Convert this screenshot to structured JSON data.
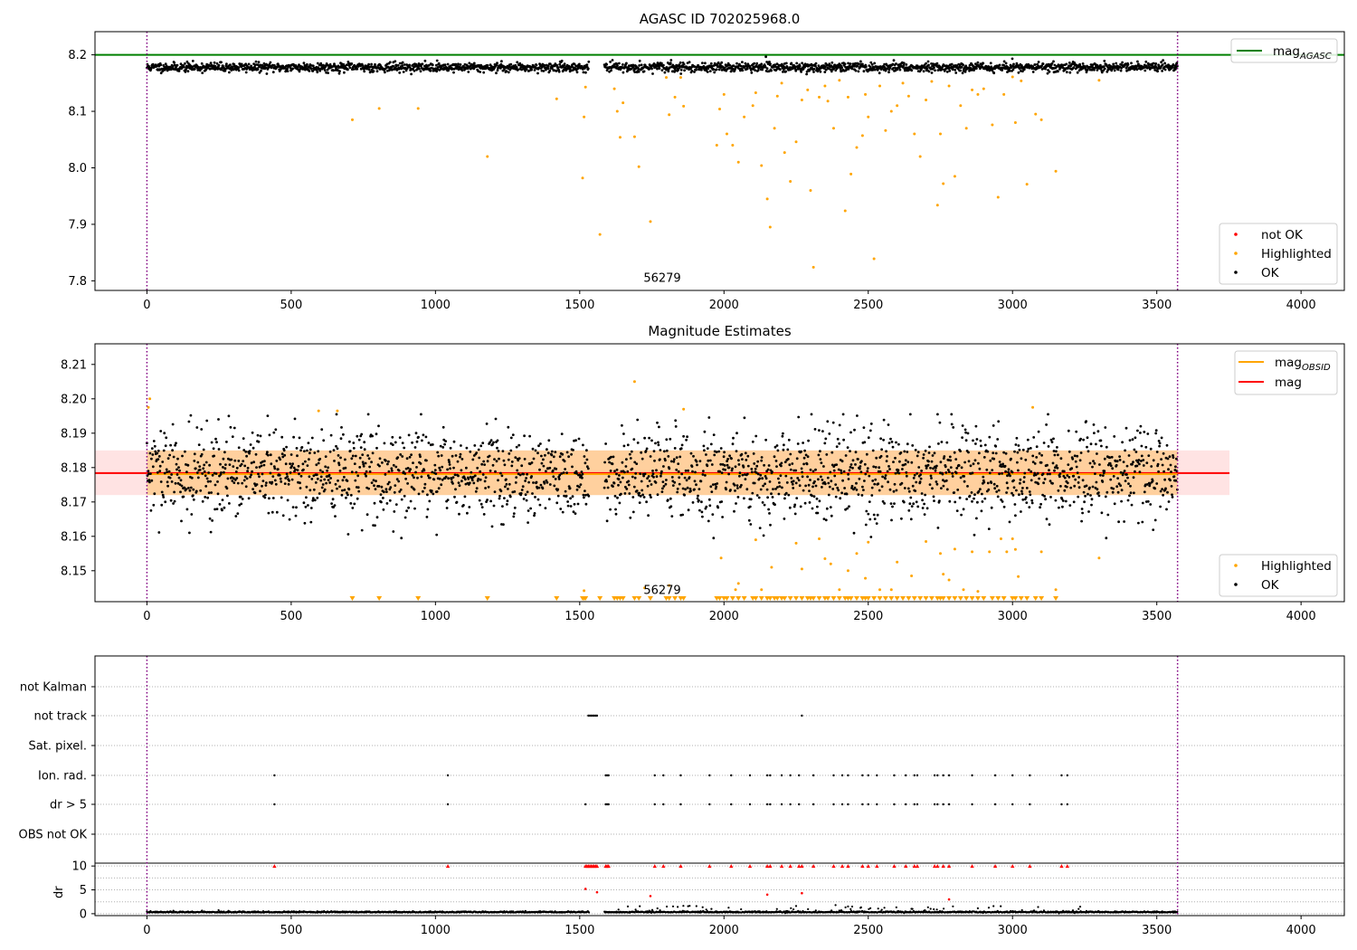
{
  "chart_data": [
    {
      "type": "scatter",
      "title": "AGASC ID 702025968.0",
      "xlim": [
        -180,
        4150
      ],
      "ylim": [
        7.783,
        8.241
      ],
      "x_ticks": [
        0,
        500,
        1000,
        1500,
        2000,
        2500,
        3000,
        3500,
        4000
      ],
      "y_ticks": [
        7.8,
        7.9,
        8.0,
        8.1,
        8.2
      ],
      "reference_lines": [
        {
          "name": "mag_AGASC",
          "y": 8.2,
          "color": "#008000"
        }
      ],
      "vlines": [
        0,
        3572
      ],
      "vline_color": "#800080",
      "annotation": {
        "text": "56279",
        "x": 1786,
        "y": 7.8
      },
      "legend_upper": [
        {
          "label": "mag",
          "sub": "AGASC",
          "color": "#008000"
        }
      ],
      "legend_lower": [
        {
          "label": "not OK",
          "color": "#ff0000"
        },
        {
          "label": "Highlighted",
          "color": "#ffa500"
        },
        {
          "label": "OK",
          "color": "#000000"
        }
      ],
      "series": [
        {
          "name": "OK",
          "color": "#000000",
          "generated": {
            "x_start": 0,
            "x_end": 3572,
            "gap": [
              1532,
              1585
            ],
            "step": 1.55,
            "center": 8.178,
            "spread": 0.009
          }
        },
        {
          "name": "Highlighted",
          "color": "#ffa500",
          "x": [
            712,
            805,
            940,
            1180,
            1420,
            1510,
            1515,
            1520,
            1570,
            1620,
            1630,
            1640,
            1650,
            1690,
            1705,
            1745,
            1800,
            1810,
            1830,
            1850,
            1860,
            1975,
            1985,
            2000,
            2010,
            2030,
            2050,
            2070,
            2100,
            2110,
            2130,
            2150,
            2160,
            2175,
            2185,
            2200,
            2210,
            2230,
            2250,
            2270,
            2290,
            2300,
            2310,
            2330,
            2350,
            2360,
            2380,
            2400,
            2420,
            2430,
            2440,
            2460,
            2480,
            2490,
            2500,
            2520,
            2540,
            2560,
            2580,
            2600,
            2620,
            2640,
            2660,
            2680,
            2700,
            2720,
            2740,
            2750,
            2760,
            2780,
            2800,
            2820,
            2840,
            2860,
            2880,
            2900,
            2930,
            2950,
            2970,
            3000,
            3010,
            3030,
            3050,
            3080,
            3100,
            3150,
            3300
          ],
          "y": [
            8.085,
            8.105,
            8.105,
            8.02,
            8.122,
            7.982,
            8.09,
            8.143,
            7.882,
            8.14,
            8.1,
            8.054,
            8.115,
            8.055,
            8.002,
            7.905,
            8.16,
            8.094,
            8.125,
            8.16,
            8.109,
            8.04,
            8.104,
            8.13,
            8.06,
            8.04,
            8.01,
            8.09,
            8.11,
            8.133,
            8.004,
            7.945,
            7.895,
            8.07,
            8.127,
            8.15,
            8.027,
            7.976,
            8.046,
            8.12,
            8.138,
            7.96,
            7.824,
            8.125,
            8.145,
            8.118,
            8.07,
            8.155,
            7.924,
            8.125,
            7.989,
            8.036,
            8.057,
            8.13,
            8.09,
            7.839,
            8.145,
            8.066,
            8.1,
            8.11,
            8.15,
            8.127,
            8.06,
            8.02,
            8.12,
            8.153,
            7.934,
            8.06,
            7.972,
            8.145,
            7.985,
            8.11,
            8.07,
            8.138,
            8.13,
            8.14,
            8.076,
            7.948,
            8.13,
            8.161,
            8.08,
            8.154,
            7.971,
            8.095,
            8.085,
            7.994,
            8.155
          ]
        },
        {
          "name": "not OK",
          "color": "#ff0000",
          "x": [],
          "y": []
        }
      ]
    },
    {
      "type": "scatter",
      "title": "Magnitude Estimates",
      "xlim": [
        -180,
        4150
      ],
      "ylim": [
        8.141,
        8.216
      ],
      "x_ticks": [
        0,
        500,
        1000,
        1500,
        2000,
        2500,
        3000,
        3500,
        4000
      ],
      "y_ticks": [
        8.15,
        8.16,
        8.17,
        8.18,
        8.19,
        8.2,
        8.21
      ],
      "bands": [
        {
          "name": "mag band",
          "y0": 8.172,
          "y1": 8.185,
          "x0": -180,
          "x1": 3752,
          "color": "#ffc0c0"
        },
        {
          "name": "mag_OBSID band",
          "y0": 8.172,
          "y1": 8.185,
          "x0": 0,
          "x1": 3572,
          "color": "#ffa500"
        }
      ],
      "reference_lines": [
        {
          "name": "mag",
          "y": 8.1784,
          "x0": -180,
          "x1": 3752,
          "color": "#ff0000"
        },
        {
          "name": "mag_OBSID",
          "y": 8.1781,
          "x0": 0,
          "x1": 3572,
          "color": "#ffa500"
        }
      ],
      "vlines": [
        0,
        3572
      ],
      "vline_color": "#800080",
      "annotation": {
        "text": "56279",
        "x": 1786,
        "y": 8.1435
      },
      "legend_upper": [
        {
          "label": "mag",
          "sub": "OBSID",
          "color": "#ffa500"
        },
        {
          "label": "mag",
          "sub": "",
          "color": "#ff0000"
        }
      ],
      "legend_lower": [
        {
          "label": "Highlighted",
          "color": "#ffa500"
        },
        {
          "label": "OK",
          "color": "#000000"
        }
      ],
      "series": [
        {
          "name": "OK",
          "color": "#000000",
          "generated": {
            "x_start": 0,
            "x_end": 3572,
            "gap": [
              1532,
              1585
            ],
            "step": 1.55,
            "center": 8.178,
            "spread": 0.0065
          }
        },
        {
          "name": "Highlighted",
          "color": "#ffa500",
          "x": [
            5,
            10,
            595,
            660,
            1690,
            1860,
            3070,
            3300,
            1515,
            1725,
            1810,
            1990,
            2040,
            2050,
            2110,
            2130,
            2165,
            2250,
            2270,
            2330,
            2350,
            2370,
            2400,
            2430,
            2460,
            2490,
            2500,
            2540,
            2580,
            2600,
            2650,
            2700,
            2750,
            2760,
            2780,
            2800,
            2830,
            2860,
            2880,
            2920,
            2960,
            2980,
            3000,
            3010,
            3020,
            3100,
            3150
          ],
          "y": [
            8.1975,
            8.2,
            8.1965,
            8.1965,
            8.205,
            8.197,
            8.1975,
            8.1537,
            8.1442,
            8.145,
            8.1457,
            8.1537,
            8.1445,
            8.1463,
            8.159,
            8.1445,
            8.151,
            8.158,
            8.1505,
            8.1593,
            8.1535,
            8.152,
            8.1445,
            8.15,
            8.155,
            8.1478,
            8.1583,
            8.1445,
            8.1445,
            8.1525,
            8.1485,
            8.1585,
            8.155,
            8.149,
            8.1473,
            8.1563,
            8.1445,
            8.1555,
            8.144,
            8.1555,
            8.1593,
            8.1555,
            8.1593,
            8.1562,
            8.1483,
            8.1555,
            8.1445
          ]
        },
        {
          "name": "Highlighted (clipped below)",
          "color": "#ffa500",
          "marker": "triangle-down",
          "x": [
            712,
            805,
            940,
            1180,
            1420,
            1510,
            1515,
            1520,
            1570,
            1620,
            1630,
            1640,
            1650,
            1690,
            1705,
            1745,
            1800,
            1810,
            1830,
            1850,
            1860,
            1975,
            1985,
            2000,
            2010,
            2030,
            2050,
            2070,
            2100,
            2110,
            2130,
            2150,
            2160,
            2175,
            2185,
            2200,
            2210,
            2230,
            2250,
            2270,
            2290,
            2300,
            2310,
            2330,
            2350,
            2360,
            2380,
            2400,
            2420,
            2430,
            2440,
            2460,
            2480,
            2490,
            2500,
            2520,
            2540,
            2560,
            2580,
            2600,
            2620,
            2640,
            2660,
            2680,
            2700,
            2720,
            2740,
            2750,
            2760,
            2780,
            2800,
            2820,
            2840,
            2860,
            2880,
            2900,
            2930,
            2950,
            2970,
            3000,
            3010,
            3030,
            3050,
            3080,
            3100,
            3150
          ]
        }
      ]
    },
    {
      "type": "scatter",
      "title": "",
      "xlim": [
        -180,
        4150
      ],
      "x_ticks": [
        0,
        500,
        1000,
        1500,
        2000,
        2500,
        3000,
        3500,
        4000
      ],
      "vlines": [
        0,
        3572
      ],
      "vline_color": "#800080",
      "flag_rows": [
        "not Kalman",
        "not track",
        "Sat. pixel.",
        "Ion. rad.",
        "dr > 5",
        "OBS not OK"
      ],
      "flags": {
        "not track": {
          "x": [
            1530,
            1535,
            1540,
            1545,
            1550,
            1555,
            1560,
            2270
          ]
        },
        "Ion. rad.": {
          "x": [
            442,
            1043,
            1590,
            1595,
            1600,
            1760,
            1790,
            1850,
            1950,
            2025,
            2090,
            2150,
            2160,
            2200,
            2230,
            2260,
            2310,
            2380,
            2410,
            2430,
            2480,
            2500,
            2530,
            2590,
            2630,
            2660,
            2670,
            2730,
            2740,
            2760,
            2780,
            2860,
            2940,
            3000,
            3060,
            3170,
            3190
          ]
        },
        "dr > 5": {
          "x": [
            442,
            1043,
            1520,
            1590,
            1595,
            1600,
            1760,
            1790,
            1850,
            1950,
            2025,
            2090,
            2150,
            2160,
            2200,
            2230,
            2260,
            2310,
            2380,
            2410,
            2430,
            2480,
            2500,
            2530,
            2590,
            2630,
            2660,
            2670,
            2730,
            2740,
            2760,
            2780,
            2860,
            2940,
            3000,
            3060,
            3170,
            3190
          ]
        }
      },
      "dr_panel": {
        "ylabel": "dr",
        "ylim": [
          -0.4,
          10.6
        ],
        "y_ticks": [
          0,
          5,
          10
        ],
        "clip_value": 10,
        "clipped_color": "#ff0000",
        "clipped_x": [
          442,
          1043,
          1520,
          1525,
          1530,
          1535,
          1540,
          1545,
          1550,
          1555,
          1560,
          1590,
          1595,
          1600,
          1760,
          1790,
          1850,
          1950,
          2025,
          2090,
          2150,
          2160,
          2200,
          2230,
          2260,
          2270,
          2310,
          2380,
          2410,
          2430,
          2480,
          2500,
          2530,
          2590,
          2630,
          2660,
          2670,
          2730,
          2740,
          2760,
          2780,
          2860,
          2940,
          3000,
          3060,
          3170,
          3190
        ],
        "outliers_color": "#ff0000",
        "outliers_x": [
          1520,
          1560,
          1745,
          2150,
          2270,
          2780
        ],
        "outliers_y": [
          5.2,
          4.5,
          3.7,
          4.0,
          4.3,
          3.0
        ],
        "ok_color": "#000000",
        "ok_generated": {
          "x_start": 0,
          "x_end": 3572,
          "gap": [
            1532,
            1585
          ],
          "step": 1.8
        }
      }
    }
  ]
}
